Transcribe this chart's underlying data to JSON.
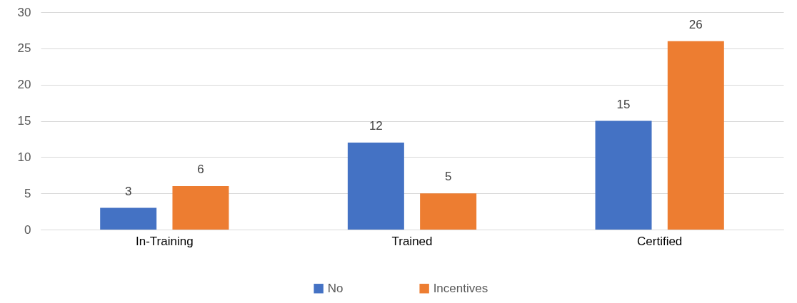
{
  "chart_data": {
    "type": "bar",
    "categories": [
      "In-Training",
      "Trained",
      "Certified"
    ],
    "series": [
      {
        "name": "No",
        "color": "#4472c4",
        "values": [
          3,
          12,
          15
        ]
      },
      {
        "name": "Incentives",
        "color": "#ed7d31",
        "values": [
          6,
          5,
          26
        ]
      }
    ],
    "ylim": [
      0,
      30
    ],
    "yticks": [
      0,
      5,
      10,
      15,
      20,
      25,
      30
    ],
    "grid": "y",
    "legend": "bottom",
    "data_labels": true
  }
}
